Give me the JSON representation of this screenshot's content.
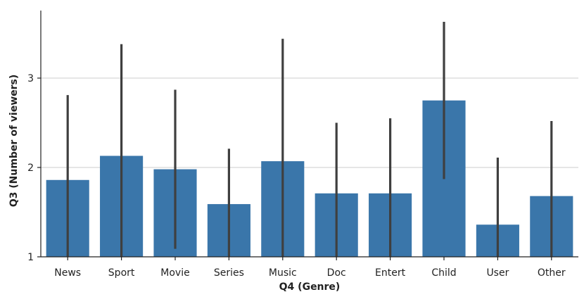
{
  "chart_data": {
    "type": "bar",
    "xlabel": "Q4 (Genre)",
    "ylabel": "Q3 (Number of viewers)",
    "categories": [
      "News",
      "Sport",
      "Movie",
      "Series",
      "Music",
      "Doc",
      "Entert",
      "Child",
      "User",
      "Other"
    ],
    "values": [
      1.86,
      2.13,
      1.98,
      1.59,
      2.07,
      1.71,
      1.71,
      2.75,
      1.36,
      1.68
    ],
    "error_low": [
      1.0,
      1.0,
      1.09,
      1.0,
      1.0,
      1.0,
      1.0,
      1.87,
      1.0,
      1.0
    ],
    "error_high": [
      2.81,
      3.38,
      2.87,
      2.21,
      3.44,
      2.5,
      2.55,
      3.63,
      2.11,
      2.52
    ],
    "yticks": [
      1,
      2,
      3
    ],
    "ylim": [
      1,
      3.73
    ],
    "grid": "horizontal",
    "bar_color": "#3a76aa",
    "errorbar_color": "#3f3f3f"
  }
}
